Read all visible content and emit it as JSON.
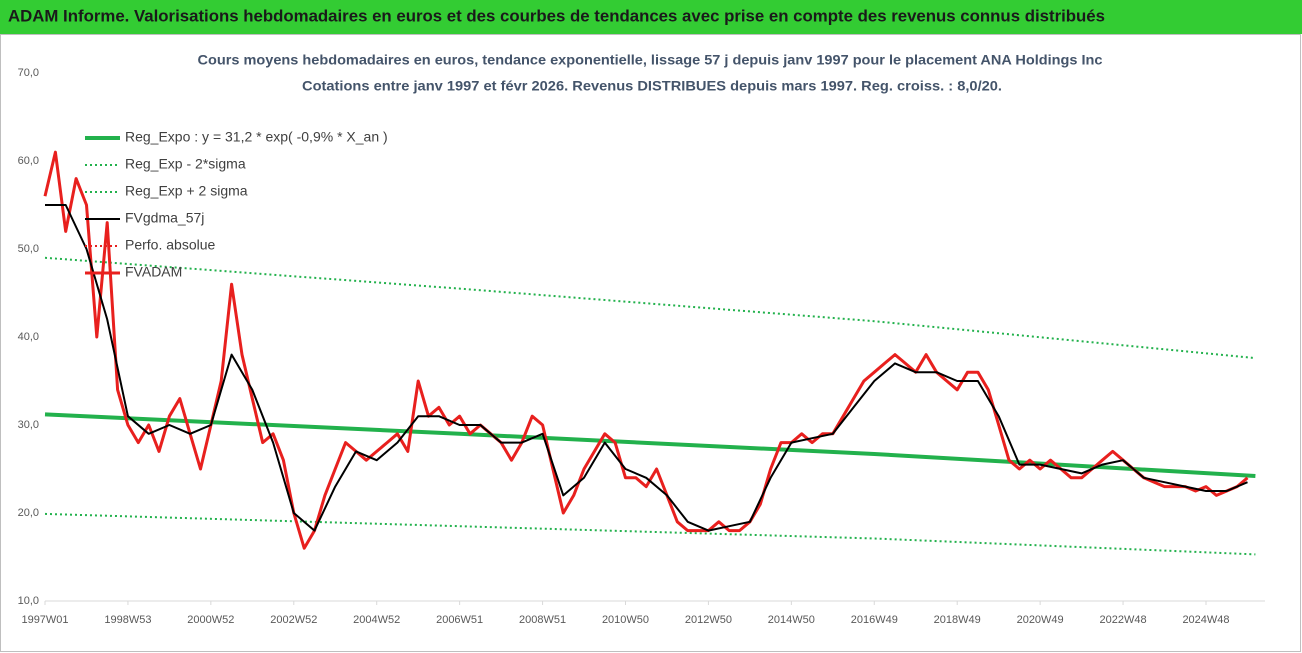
{
  "header": {
    "title": "ADAM Informe. Valorisations hebdomadaires en euros et des courbes de tendances avec prise en compte des revenus connus distribués"
  },
  "chart_data": {
    "type": "line",
    "title": "Cours moyens hebdomadaires en euros, tendance exponentielle, lissage 57 j depuis janv 1997 pour le placement ANA Holdings Inc",
    "subtitle": "Cotations entre janv 1997 et févr 2026. Revenus DISTRIBUES depuis mars 1997. Reg. croiss. : 8,0/20.",
    "xlim": [
      0,
      1530
    ],
    "xticks": [
      {
        "value": 0,
        "label": "1997W01"
      },
      {
        "value": 104,
        "label": "1998W53"
      },
      {
        "value": 208,
        "label": "2000W52"
      },
      {
        "value": 312,
        "label": "2002W52"
      },
      {
        "value": 416,
        "label": "2004W52"
      },
      {
        "value": 520,
        "label": "2006W51"
      },
      {
        "value": 624,
        "label": "2008W51"
      },
      {
        "value": 728,
        "label": "2010W50"
      },
      {
        "value": 832,
        "label": "2012W50"
      },
      {
        "value": 936,
        "label": "2014W50"
      },
      {
        "value": 1040,
        "label": "2016W49"
      },
      {
        "value": 1144,
        "label": "2018W49"
      },
      {
        "value": 1248,
        "label": "2020W49"
      },
      {
        "value": 1352,
        "label": "2022W48"
      },
      {
        "value": 1456,
        "label": "2024W48"
      }
    ],
    "ylim": [
      10,
      70
    ],
    "yticks": [
      {
        "value": 10,
        "label": "10,0"
      },
      {
        "value": 20,
        "label": "20,0"
      },
      {
        "value": 30,
        "label": "30,0"
      },
      {
        "value": 40,
        "label": "40,0"
      },
      {
        "value": 50,
        "label": "50,0"
      },
      {
        "value": 60,
        "label": "60,0"
      },
      {
        "value": 70,
        "label": "70,0"
      }
    ],
    "grid": false,
    "series": [
      {
        "name": "Reg_Expo : y = 31,2 * exp( -0,9% *  X_an )",
        "color": "#22b14c",
        "style": "solid",
        "width": 4,
        "x": [
          0,
          520,
          1040,
          1518
        ],
        "values": [
          31.2,
          29.0,
          26.7,
          24.2
        ]
      },
      {
        "name": "Reg_Exp - 2*sigma",
        "color": "#22b14c",
        "style": "dotted",
        "width": 2,
        "x": [
          0,
          520,
          1040,
          1518
        ],
        "values": [
          19.9,
          18.5,
          17.1,
          15.3
        ]
      },
      {
        "name": "Reg_Exp + 2 sigma",
        "color": "#22b14c",
        "style": "dotted",
        "width": 2,
        "x": [
          0,
          520,
          1040,
          1518
        ],
        "values": [
          49,
          45.5,
          41.8,
          37.6
        ]
      },
      {
        "name": "FVgdma_57j",
        "color": "#000000",
        "style": "solid",
        "width": 2,
        "x": [
          0,
          26,
          52,
          78,
          104,
          130,
          156,
          182,
          208,
          234,
          260,
          286,
          312,
          338,
          364,
          390,
          416,
          442,
          468,
          494,
          520,
          546,
          572,
          598,
          624,
          650,
          676,
          702,
          728,
          754,
          780,
          806,
          832,
          858,
          884,
          910,
          936,
          962,
          988,
          1014,
          1040,
          1066,
          1092,
          1118,
          1144,
          1170,
          1196,
          1222,
          1248,
          1274,
          1300,
          1326,
          1352,
          1378,
          1404,
          1430,
          1456,
          1482,
          1508
        ],
        "values": [
          55,
          55,
          50,
          42,
          31,
          29,
          30,
          29,
          30,
          38,
          34,
          28,
          20,
          18,
          23,
          27,
          26,
          28,
          31,
          31,
          30,
          30,
          28,
          28,
          29,
          22,
          24,
          28,
          25,
          24,
          22,
          19,
          18,
          18.5,
          19,
          24,
          28,
          28.5,
          29,
          32,
          35,
          37,
          36,
          36,
          35,
          35,
          31,
          25.5,
          25.5,
          25,
          24.5,
          25.5,
          26,
          24,
          23.5,
          23,
          22.5,
          22.5,
          23.5
        ]
      },
      {
        "name": "Perfo. absolue",
        "color": "#e8201e",
        "style": "dotted",
        "width": 2
      },
      {
        "name": "FVADAM",
        "color": "#e8201e",
        "style": "solid",
        "width": 3,
        "x": [
          0,
          13,
          26,
          39,
          52,
          65,
          78,
          91,
          104,
          117,
          130,
          143,
          156,
          169,
          182,
          195,
          208,
          221,
          234,
          247,
          260,
          273,
          286,
          299,
          312,
          325,
          338,
          351,
          364,
          377,
          390,
          403,
          416,
          429,
          442,
          455,
          468,
          481,
          494,
          507,
          520,
          533,
          546,
          559,
          572,
          585,
          598,
          611,
          624,
          637,
          650,
          663,
          676,
          689,
          702,
          715,
          728,
          741,
          754,
          767,
          780,
          793,
          806,
          819,
          832,
          845,
          858,
          871,
          884,
          897,
          910,
          923,
          936,
          949,
          962,
          975,
          988,
          1001,
          1014,
          1027,
          1040,
          1053,
          1066,
          1079,
          1092,
          1105,
          1118,
          1131,
          1144,
          1157,
          1170,
          1183,
          1196,
          1209,
          1222,
          1235,
          1248,
          1261,
          1274,
          1287,
          1300,
          1313,
          1326,
          1339,
          1352,
          1365,
          1378,
          1391,
          1404,
          1417,
          1430,
          1443,
          1456,
          1469,
          1482,
          1495,
          1508
        ],
        "values": [
          56,
          61,
          52,
          58,
          55,
          40,
          53,
          34,
          30,
          28,
          30,
          27,
          31,
          33,
          29,
          25,
          30,
          35,
          46,
          38,
          33,
          28,
          29,
          26,
          20,
          16,
          18,
          22,
          25,
          28,
          27,
          26,
          27,
          28,
          29,
          27,
          35,
          31,
          32,
          30,
          31,
          29,
          30,
          29,
          28,
          26,
          28,
          31,
          30,
          25,
          20,
          22,
          25,
          27,
          29,
          28,
          24,
          24,
          23,
          25,
          22,
          19,
          18,
          18,
          18,
          19,
          18,
          18,
          19,
          21,
          25,
          28,
          28,
          29,
          28,
          29,
          29,
          31,
          33,
          35,
          36,
          37,
          38,
          37,
          36,
          38,
          36,
          35,
          34,
          36,
          36,
          34,
          30,
          26,
          25,
          26,
          25,
          26,
          25,
          24,
          24,
          25,
          26,
          27,
          26,
          25,
          24,
          23.5,
          23,
          23,
          23,
          22.5,
          23,
          22,
          22.5,
          23,
          24
        ]
      }
    ]
  }
}
